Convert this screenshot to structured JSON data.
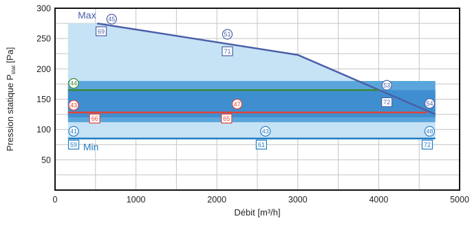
{
  "chart_data": {
    "type": "area",
    "xlabel": "Débit [m³/h]",
    "ylabel": "Pression statique P",
    "ylabel_sub": "stat",
    "ylabel_unit": " [Pa]",
    "xlim": [
      0,
      5000
    ],
    "ylim": [
      0,
      300
    ],
    "xticks": [
      0,
      1000,
      2000,
      3000,
      4000,
      5000
    ],
    "yticks": [
      50,
      100,
      150,
      200,
      250,
      300
    ],
    "grid": true,
    "colors": {
      "max_line": "#4a5fa8",
      "min_line": "#1f7cc4",
      "green_line": "#3c8a32",
      "red_line": "#e0443a",
      "outer_region": "#c6e2f5",
      "inner_band": "#5aa6dc",
      "inner_core": "#3f8fd0"
    },
    "outer_region": {
      "x": [
        160,
        500,
        3000,
        4700,
        4700,
        160
      ],
      "y": [
        275,
        275,
        223,
        125,
        85,
        85
      ]
    },
    "inner_band": {
      "x": [
        160,
        4700
      ],
      "y": [
        112,
        180
      ]
    },
    "inner_core": {
      "x": [
        160,
        4700
      ],
      "y": [
        120,
        165
      ]
    },
    "series": [
      {
        "name": "Max",
        "x": [
          520,
          3000,
          4700
        ],
        "y": [
          275,
          223,
          125
        ],
        "color": "#4a5fa8"
      },
      {
        "name": "Min",
        "x": [
          160,
          4700
        ],
        "y": [
          85,
          85
        ],
        "color": "#1f7cc4"
      },
      {
        "name": "",
        "x": [
          160,
          4000
        ],
        "y": [
          165,
          165
        ],
        "color": "#3c8a32"
      },
      {
        "name": "",
        "x": [
          160,
          4600
        ],
        "y": [
          128,
          128
        ],
        "color": "#e0443a"
      }
    ],
    "markers": [
      {
        "label": "45",
        "shape": "circle",
        "x": 700,
        "y": 282,
        "color": "#4a5fa8"
      },
      {
        "label": "69",
        "shape": "square",
        "x": 570,
        "y": 262,
        "color": "#4a5fa8"
      },
      {
        "label": "51",
        "shape": "circle",
        "x": 2130,
        "y": 257,
        "color": "#4a5fa8"
      },
      {
        "label": "71",
        "shape": "square",
        "x": 2130,
        "y": 229,
        "color": "#4a5fa8"
      },
      {
        "label": "53",
        "shape": "circle",
        "x": 4100,
        "y": 173,
        "color": "#4a5fa8"
      },
      {
        "label": "72",
        "shape": "square",
        "x": 4100,
        "y": 145,
        "color": "#4a5fa8"
      },
      {
        "label": "54",
        "shape": "circle",
        "x": 4630,
        "y": 143,
        "color": "#4a5fa8"
      },
      {
        "label": "44",
        "shape": "circle",
        "x": 230,
        "y": 176,
        "color": "#3c8a32"
      },
      {
        "label": "43",
        "shape": "circle",
        "x": 230,
        "y": 140,
        "color": "#e0443a"
      },
      {
        "label": "66",
        "shape": "square",
        "x": 490,
        "y": 118,
        "color": "#e0443a"
      },
      {
        "label": "47",
        "shape": "circle",
        "x": 2250,
        "y": 142,
        "color": "#e0443a"
      },
      {
        "label": "65",
        "shape": "square",
        "x": 2120,
        "y": 118,
        "color": "#e0443a"
      },
      {
        "label": "41",
        "shape": "circle",
        "x": 230,
        "y": 97,
        "color": "#1f7cc4"
      },
      {
        "label": "59",
        "shape": "square",
        "x": 230,
        "y": 75,
        "color": "#1f7cc4"
      },
      {
        "label": "43",
        "shape": "circle",
        "x": 2600,
        "y": 97,
        "color": "#1f7cc4"
      },
      {
        "label": "61",
        "shape": "square",
        "x": 2550,
        "y": 75,
        "color": "#1f7cc4"
      },
      {
        "label": "48",
        "shape": "circle",
        "x": 4630,
        "y": 97,
        "color": "#1f7cc4"
      },
      {
        "label": "72",
        "shape": "square",
        "x": 4600,
        "y": 75,
        "color": "#1f7cc4"
      }
    ]
  }
}
